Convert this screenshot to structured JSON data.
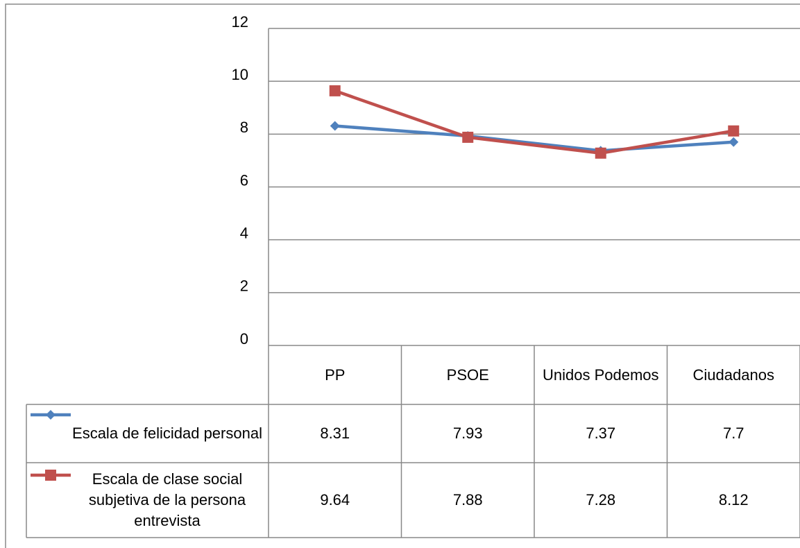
{
  "chart_data": {
    "type": "line",
    "categories": [
      "PP",
      "PSOE",
      "Unidos Podemos",
      "Ciudadanos"
    ],
    "series": [
      {
        "name": "Escala de felicidad personal",
        "color": "#4f81bd",
        "marker": "diamond",
        "values": [
          8.31,
          7.93,
          7.37,
          7.7
        ]
      },
      {
        "name": "Escala de clase social subjetiva de la persona entrevista",
        "color": "#c0504d",
        "marker": "square",
        "values": [
          9.64,
          7.88,
          7.28,
          8.12
        ]
      }
    ],
    "ylim": [
      0,
      12
    ],
    "yticks": [
      0,
      2,
      4,
      6,
      8,
      10,
      12
    ],
    "grid": true,
    "data_table": true
  }
}
